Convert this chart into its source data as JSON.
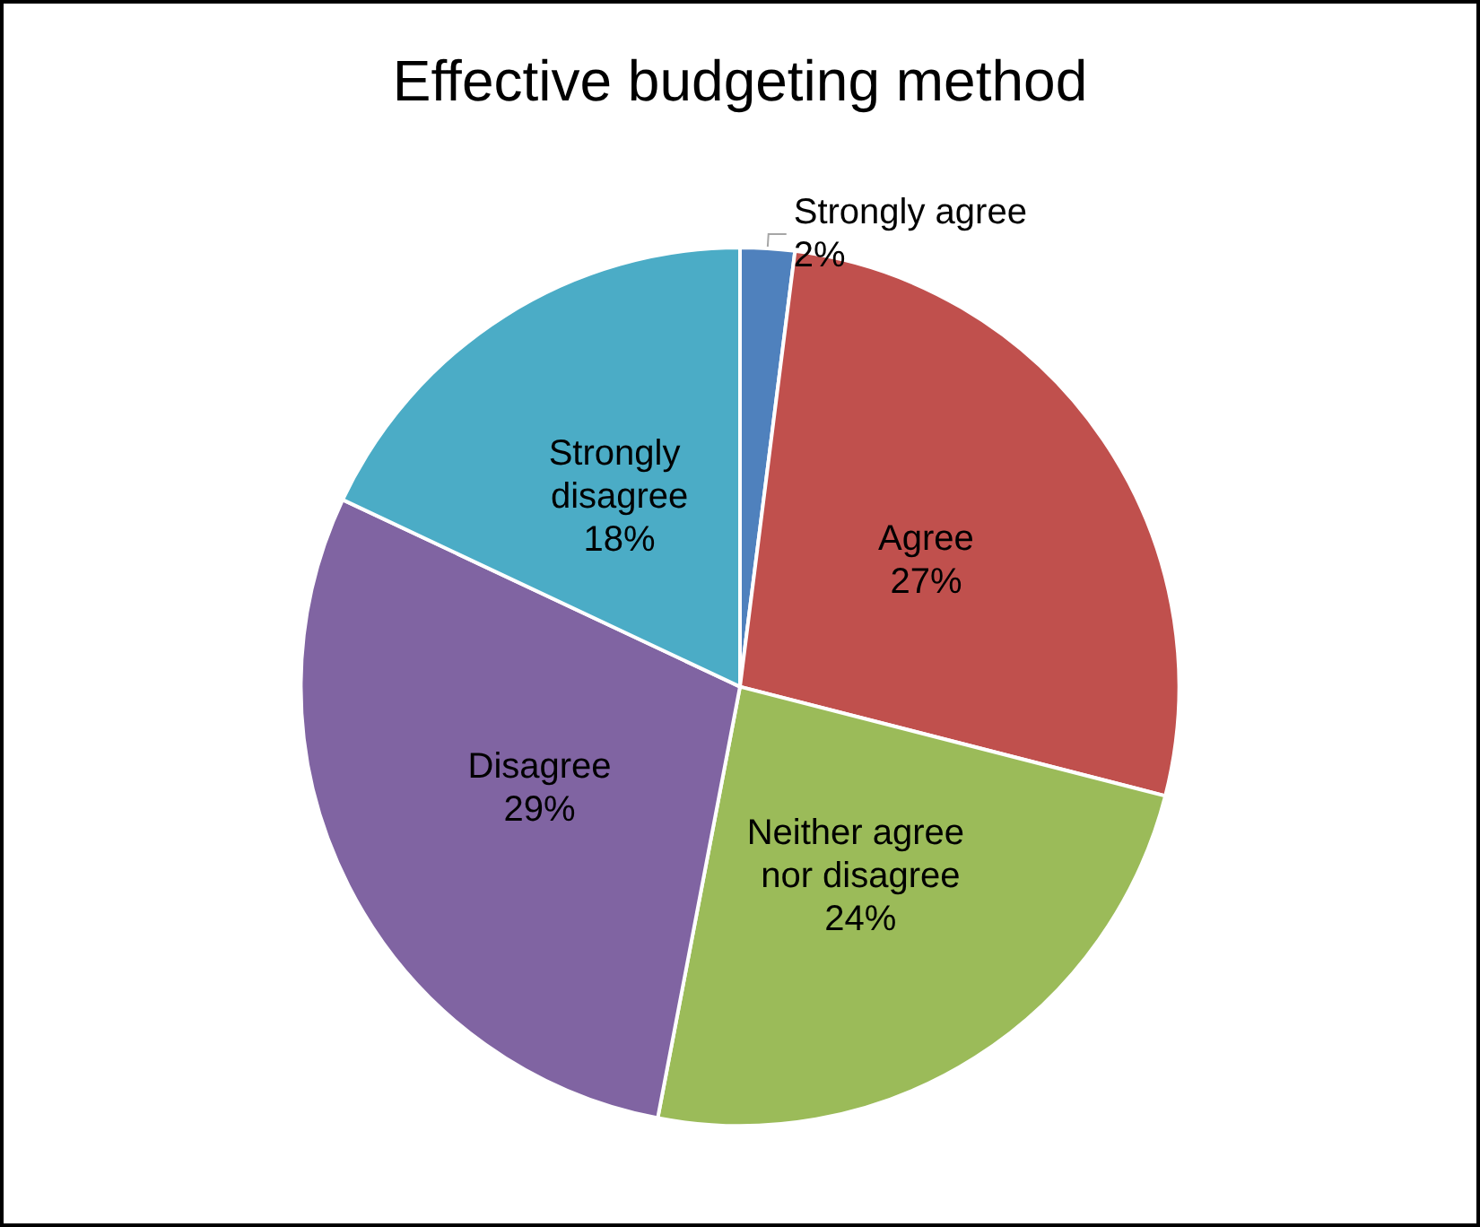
{
  "chart_data": {
    "type": "pie",
    "title": "Effective budgeting method",
    "categories": [
      "Strongly agree",
      "Agree",
      "Neither agree nor disagree",
      "Disagree",
      "Strongly disagree"
    ],
    "values": [
      2,
      27,
      24,
      29,
      18
    ],
    "colors": [
      "#4f81bd",
      "#c0504d",
      "#9bbb59",
      "#8064a2",
      "#4bacc6"
    ],
    "value_labels": [
      "2%",
      "27%",
      "24%",
      "29%",
      "18%"
    ],
    "legend": false
  }
}
